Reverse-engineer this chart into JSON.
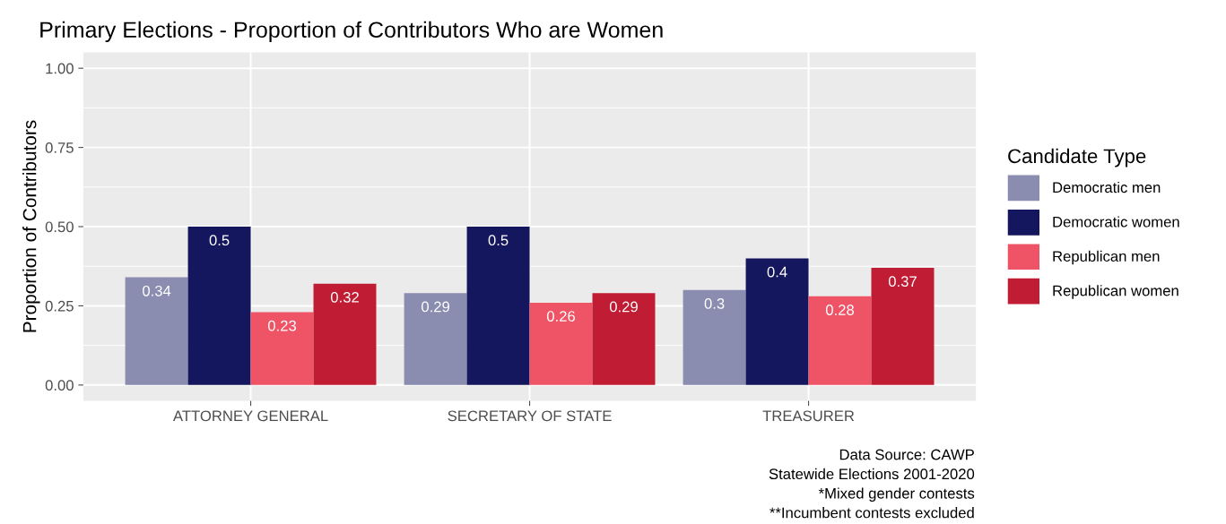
{
  "chart_data": {
    "type": "bar",
    "title": "Primary Elections - Proportion of Contributors Who are Women",
    "ylabel": "Proportion of Contributors",
    "legend_title": "Candidate Type",
    "categories": [
      "ATTORNEY GENERAL",
      "SECRETARY OF STATE",
      "TREASURER"
    ],
    "series": [
      {
        "name": "Democratic men",
        "color": "#8a8db0",
        "values": [
          0.34,
          0.29,
          0.3
        ]
      },
      {
        "name": "Democratic women",
        "color": "#14175e",
        "values": [
          0.5,
          0.5,
          0.4
        ]
      },
      {
        "name": "Republican men",
        "color": "#ee5465",
        "values": [
          0.23,
          0.26,
          0.28
        ]
      },
      {
        "name": "Republican women",
        "color": "#c01c34",
        "values": [
          0.32,
          0.29,
          0.37
        ]
      }
    ],
    "ylim": [
      -0.05,
      1.05
    ],
    "yticks": [
      {
        "value": 0,
        "label": "0.00"
      },
      {
        "value": 0.25,
        "label": "0.25"
      },
      {
        "value": 0.5,
        "label": "0.50"
      },
      {
        "value": 0.75,
        "label": "0.75"
      },
      {
        "value": 1,
        "label": "1.00"
      }
    ],
    "grid": true,
    "legend": "right",
    "data_labels": true,
    "annotations": [
      "Data Source: CAWP",
      "Statewide Elections 2001-2020",
      "*Mixed gender contests",
      "**Incumbent contests excluded"
    ]
  }
}
